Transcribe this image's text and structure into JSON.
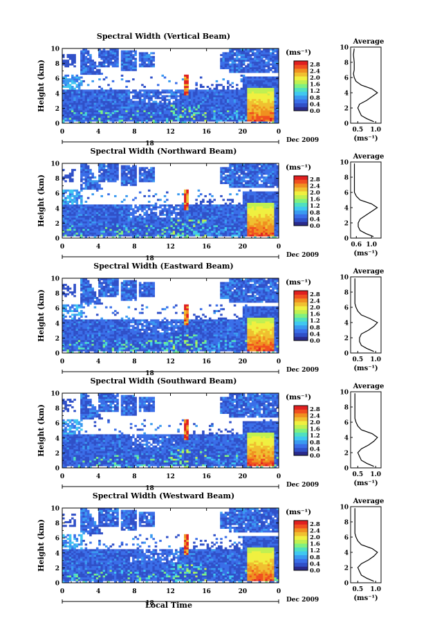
{
  "figure": {
    "time_label": "Local Time",
    "date_label": "Dec 2009",
    "date_day": "18",
    "ylabel": "Height (km)",
    "unit": "(ms⁻¹)",
    "avg_title": "Average",
    "avg_xlabel": "(ms⁻¹)"
  },
  "panels": [
    {
      "title": "Spectral Width (Vertical Beam)",
      "avg_xticks": [
        "0.5",
        "1.0"
      ],
      "avg_xlim": [
        0.3,
        1.15
      ]
    },
    {
      "title": "Spectral Width (Northward Beam)",
      "avg_xticks": [
        "0.6",
        "1.0"
      ],
      "avg_xlim": [
        0.45,
        1.25
      ]
    },
    {
      "title": "Spectral Width (Eastward Beam)",
      "avg_xticks": [
        "0.5",
        "1.0"
      ],
      "avg_xlim": [
        0.3,
        1.15
      ]
    },
    {
      "title": "Spectral Width (Southward Beam)",
      "avg_xticks": [
        "0.5",
        "1.0"
      ],
      "avg_xlim": [
        0.3,
        1.15
      ]
    },
    {
      "title": "Spectral Width (Westward Beam)",
      "avg_xticks": [
        "0.5",
        "1.0"
      ],
      "avg_xlim": [
        0.3,
        1.15
      ]
    }
  ],
  "chart_data": {
    "type": "heatmap",
    "x_ticks": [
      "0",
      "4",
      "8",
      "12",
      "16",
      "20",
      "0"
    ],
    "xlim": [
      0,
      24
    ],
    "y_ticks": [
      "0",
      "2",
      "4",
      "6",
      "8",
      "10"
    ],
    "ylim": [
      0,
      10
    ],
    "colorbar_ticks": [
      "0.0",
      "0.4",
      "0.8",
      "1.2",
      "1.6",
      "2.0",
      "2.4",
      "2.8"
    ],
    "colorbar_range": [
      0,
      3.0
    ],
    "avg_y_ticks": [
      "0",
      "2",
      "4",
      "6",
      "8",
      "10"
    ],
    "average_profile_heights_km": [
      0.2,
      0.6,
      1.0,
      1.5,
      2.0,
      2.5,
      3.0,
      3.5,
      4.0,
      4.5,
      5.0,
      5.5,
      6.0,
      6.5,
      7.0,
      8.0,
      9.0,
      9.8
    ],
    "average_profiles": [
      [
        0.95,
        0.75,
        0.6,
        0.55,
        0.5,
        0.55,
        0.75,
        0.9,
        1.05,
        0.9,
        0.6,
        0.45,
        0.4,
        0.38,
        0.4,
        0.4,
        0.38,
        0.4
      ],
      [
        1.05,
        0.85,
        0.7,
        0.65,
        0.65,
        0.7,
        0.85,
        1.0,
        1.15,
        1.0,
        0.7,
        0.6,
        0.55,
        0.55,
        0.55,
        0.55,
        0.55,
        0.55
      ],
      [
        0.95,
        0.75,
        0.6,
        0.55,
        0.55,
        0.6,
        0.8,
        0.95,
        1.05,
        0.85,
        0.6,
        0.5,
        0.45,
        0.42,
        0.42,
        0.42,
        0.42,
        0.42
      ],
      [
        0.95,
        0.75,
        0.6,
        0.55,
        0.5,
        0.6,
        0.8,
        0.95,
        1.05,
        0.9,
        0.6,
        0.5,
        0.45,
        0.42,
        0.42,
        0.42,
        0.42,
        0.42
      ],
      [
        0.95,
        0.75,
        0.6,
        0.55,
        0.5,
        0.6,
        0.8,
        0.95,
        1.05,
        0.9,
        0.6,
        0.5,
        0.45,
        0.42,
        0.42,
        0.42,
        0.42,
        0.42
      ]
    ],
    "colors": {
      "scale": [
        "#2a2a8a",
        "#3050c8",
        "#3a6ee8",
        "#3a9af0",
        "#40c8f0",
        "#50e0c0",
        "#80f080",
        "#c0f050",
        "#f0f040",
        "#f0c030",
        "#f09020",
        "#f05020",
        "#e02020"
      ]
    }
  }
}
